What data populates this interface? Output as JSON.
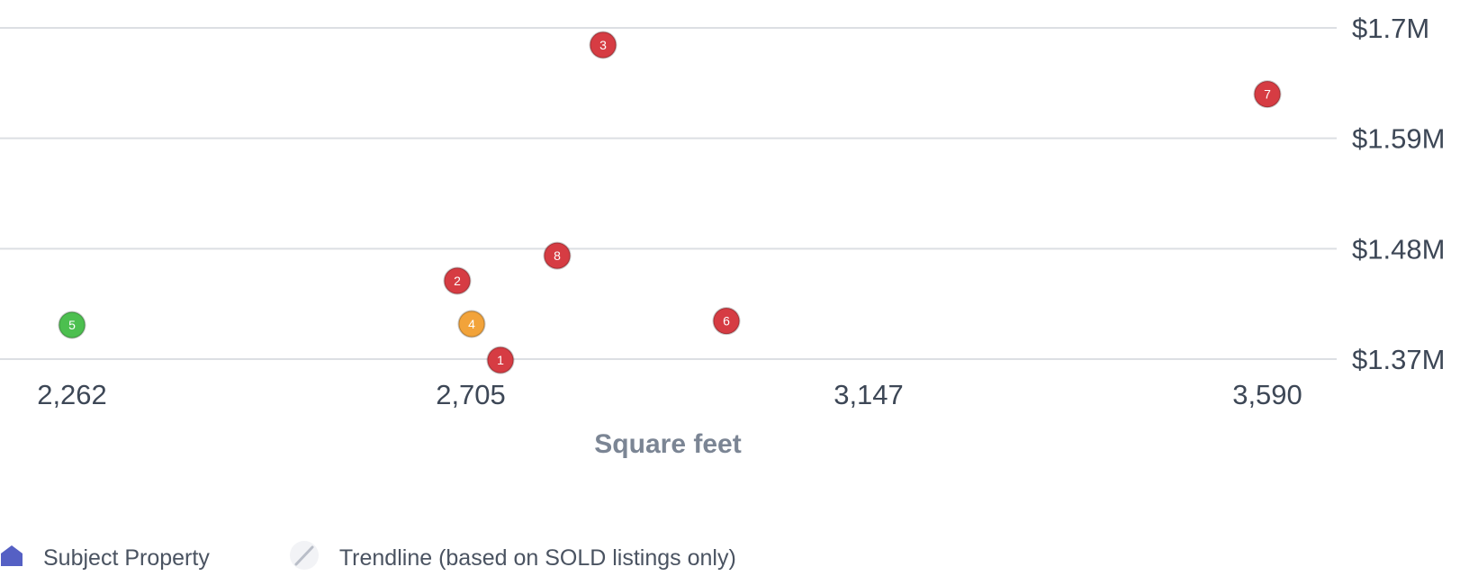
{
  "chart_data": {
    "type": "scatter",
    "xlabel": "Square feet",
    "ylabel": "",
    "x_ticks": [
      "2,262",
      "2,705",
      "3,147",
      "3,590"
    ],
    "x_tick_values": [
      2262,
      2705,
      3147,
      3590
    ],
    "y_ticks": [
      "$1.37M",
      "$1.48M",
      "$1.59M",
      "$1.7M"
    ],
    "y_tick_values": [
      1370000,
      1480000,
      1590000,
      1700000
    ],
    "xlim": [
      2262,
      3590
    ],
    "ylim": [
      1370000,
      1700000
    ],
    "grid": true,
    "y_axis_side": "right",
    "legend_position": "bottom-left",
    "points": [
      {
        "label": "1",
        "x": 2738,
        "y": 1369000,
        "color": "#d63c43"
      },
      {
        "label": "2",
        "x": 2690,
        "y": 1448000,
        "color": "#d63c43"
      },
      {
        "label": "3",
        "x": 2852,
        "y": 1683000,
        "color": "#d63c43"
      },
      {
        "label": "4",
        "x": 2706,
        "y": 1405000,
        "color": "#f2a33a"
      },
      {
        "label": "5",
        "x": 2262,
        "y": 1404000,
        "color": "#4cbf4f"
      },
      {
        "label": "6",
        "x": 2989,
        "y": 1408000,
        "color": "#d63c43"
      },
      {
        "label": "7",
        "x": 3590,
        "y": 1634000,
        "color": "#d63c43"
      },
      {
        "label": "8",
        "x": 2801,
        "y": 1473000,
        "color": "#d63c43"
      }
    ]
  },
  "legend": {
    "subject_label": "Subject Property",
    "subject_icon": "house-icon",
    "subject_color": "#5560c4",
    "trend_label": "Trendline (based on SOLD listings only)",
    "trend_icon": "trendline-icon"
  }
}
